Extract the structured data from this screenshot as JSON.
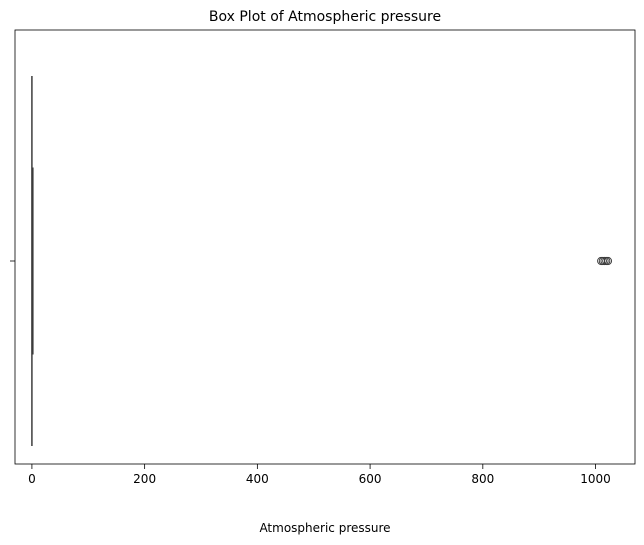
{
  "chart_data": {
    "type": "box",
    "orientation": "horizontal",
    "title": "Box Plot of Atmospheric pressure",
    "xlabel": "Atmospheric pressure",
    "ylabel": "",
    "xlim": [
      -30,
      1070
    ],
    "xticks": [
      0,
      200,
      400,
      600,
      800,
      1000
    ],
    "xtick_labels": [
      "0",
      "200",
      "400",
      "600",
      "800",
      "1000"
    ],
    "box": {
      "whisker_low": 0,
      "q1": 0.3,
      "median": 0.7,
      "q3": 1.2,
      "whisker_high": 2
    },
    "outliers": [
      1010,
      1013,
      1016,
      1019,
      1022
    ],
    "colors": {
      "box_line": "#3d3d3d",
      "box_fill": "#1f77b4",
      "outlier_edge": "#3d3d3d",
      "frame": "#000000"
    },
    "grid": false,
    "legend": "none"
  }
}
